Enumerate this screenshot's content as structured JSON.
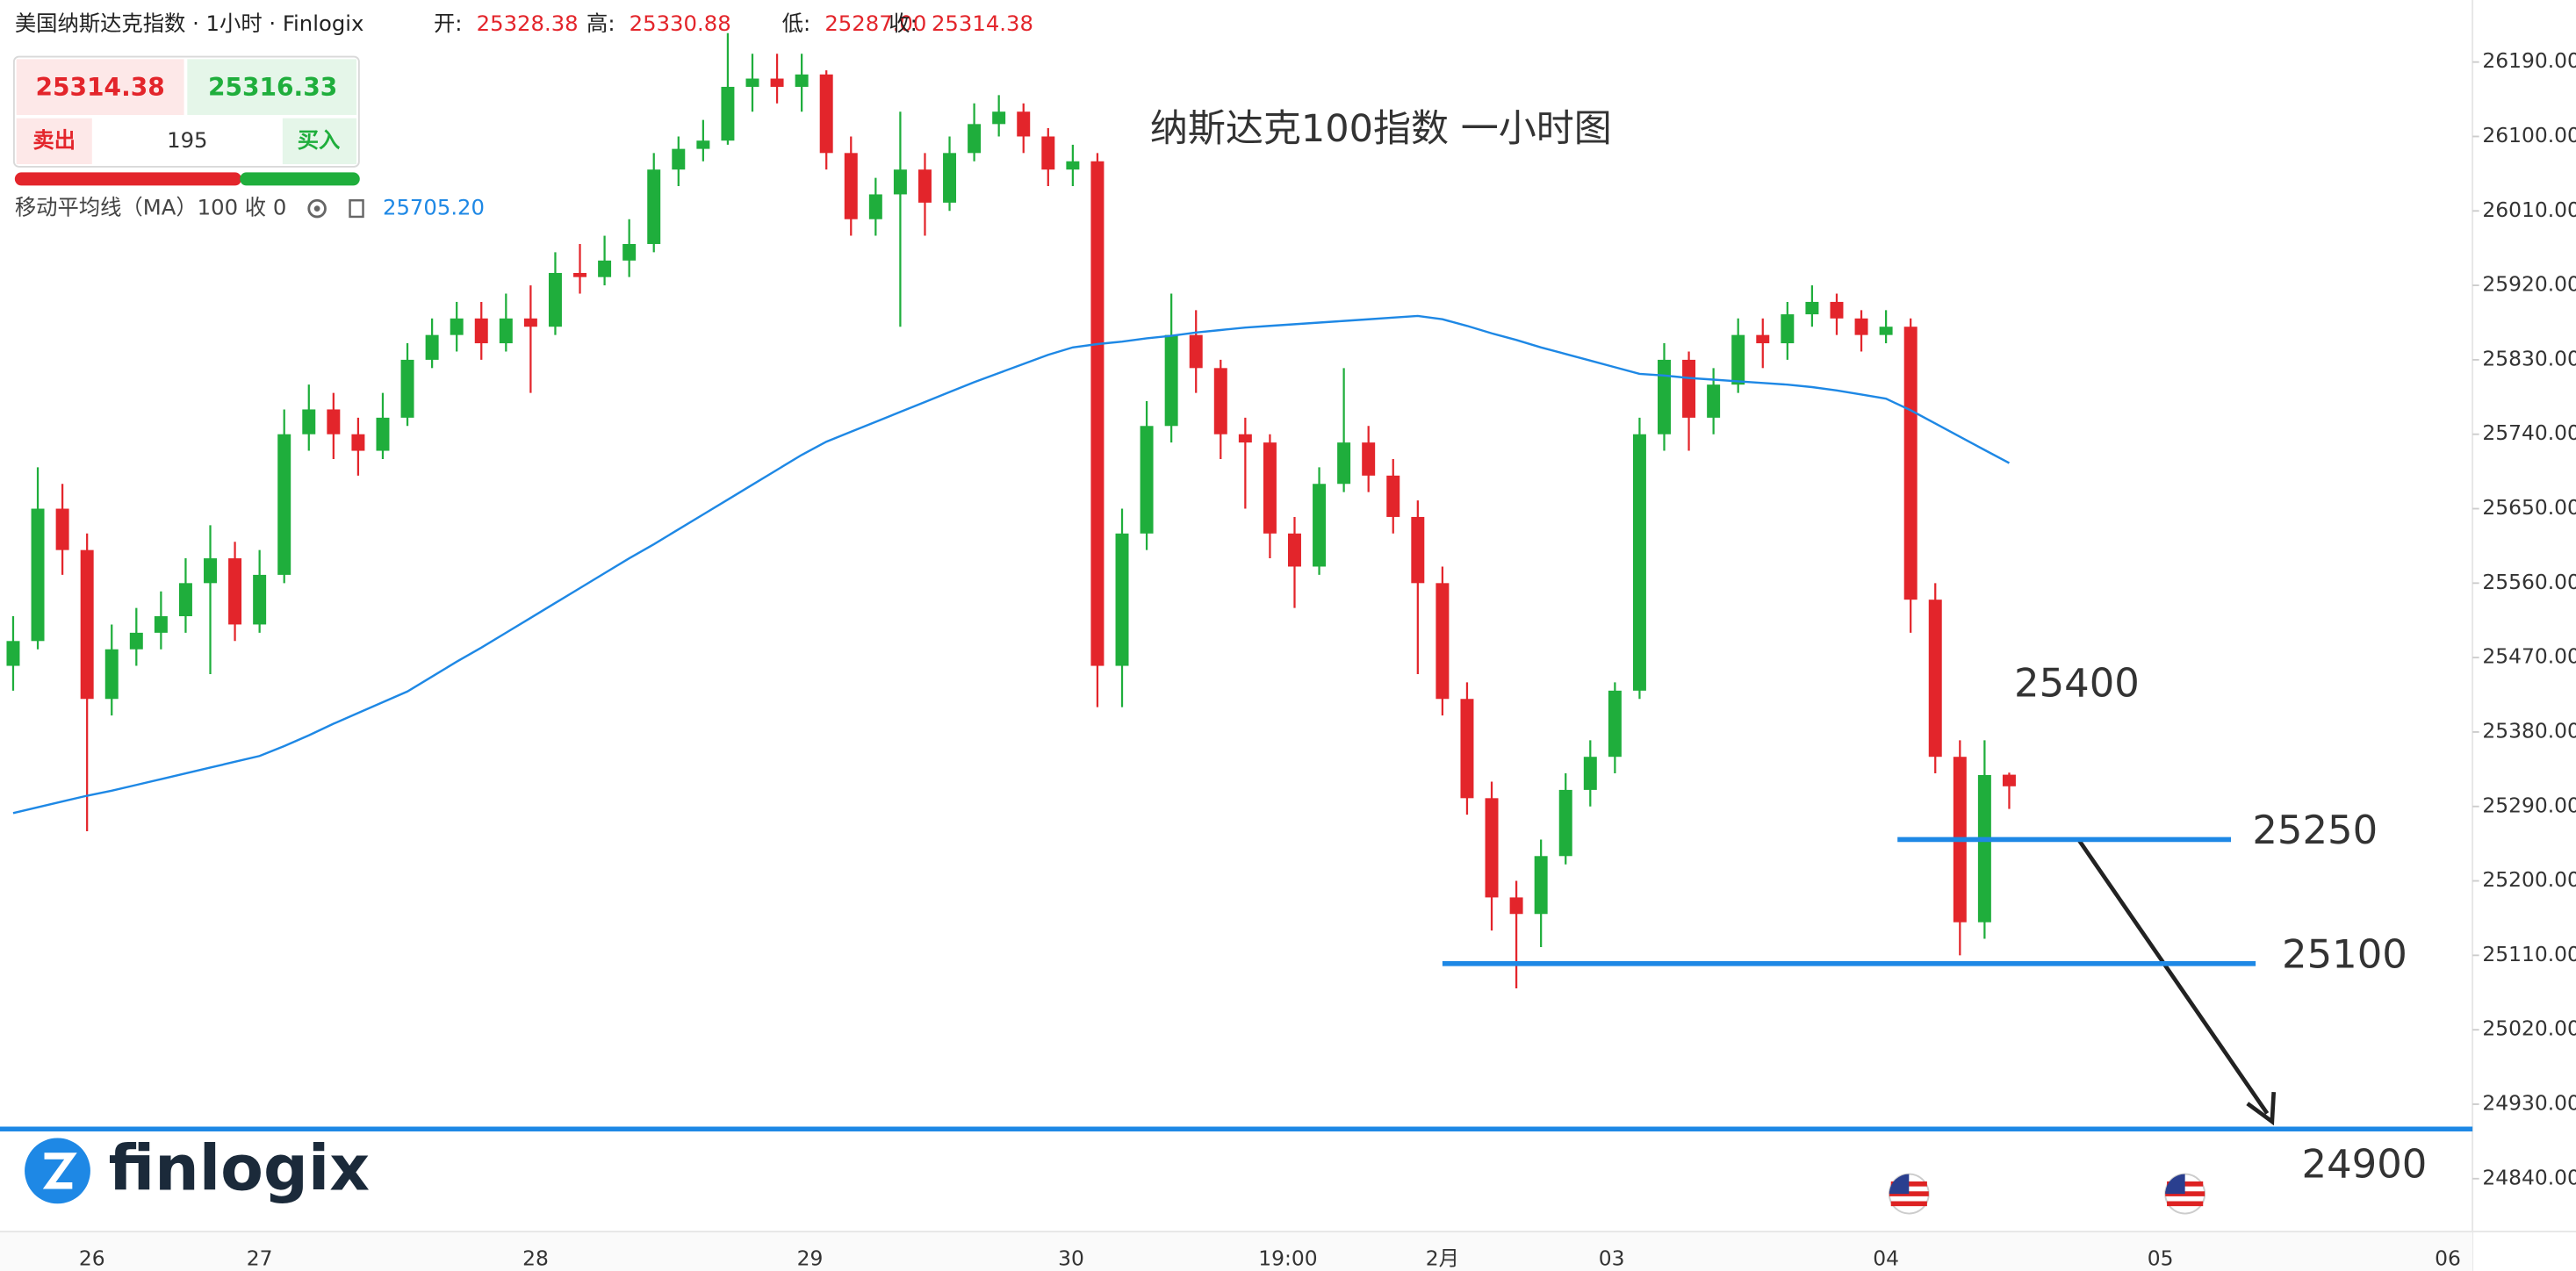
{
  "header": {
    "title": "美国纳斯达克指数 · 1小时 · Finlogix",
    "open_label": "开:",
    "open": "25328.38",
    "high_label": "高:",
    "high": "25330.88",
    "low_label": "低:",
    "low": "25287.00",
    "close_label": "收:",
    "close": "25314.38"
  },
  "quote": {
    "sell_price": "25314.38",
    "buy_price": "25316.33",
    "sell": "卖出",
    "spread": "195",
    "buy": "买入"
  },
  "indicator": {
    "label": "移动平均线（MA）100 收 0",
    "value": "25705.20"
  },
  "logo": "finlogix",
  "chart_data": {
    "type": "candlestick",
    "title": "纳斯达克100指数 一小时图",
    "up_color": "#1fae3c",
    "down_color": "#e3252b",
    "ohlc": [
      [
        25460,
        25520,
        25430,
        25490
      ],
      [
        25490,
        25700,
        25480,
        25650
      ],
      [
        25650,
        25680,
        25570,
        25600
      ],
      [
        25600,
        25620,
        25260,
        25420
      ],
      [
        25420,
        25510,
        25400,
        25480
      ],
      [
        25480,
        25530,
        25460,
        25500
      ],
      [
        25500,
        25550,
        25480,
        25520
      ],
      [
        25520,
        25590,
        25500,
        25560
      ],
      [
        25560,
        25630,
        25450,
        25590
      ],
      [
        25590,
        25610,
        25490,
        25510
      ],
      [
        25510,
        25600,
        25500,
        25570
      ],
      [
        25570,
        25770,
        25560,
        25740
      ],
      [
        25740,
        25800,
        25720,
        25770
      ],
      [
        25770,
        25790,
        25710,
        25740
      ],
      [
        25740,
        25760,
        25690,
        25720
      ],
      [
        25720,
        25790,
        25710,
        25760
      ],
      [
        25760,
        25850,
        25750,
        25830
      ],
      [
        25830,
        25880,
        25820,
        25860
      ],
      [
        25860,
        25900,
        25840,
        25880
      ],
      [
        25880,
        25900,
        25830,
        25850
      ],
      [
        25850,
        25910,
        25840,
        25880
      ],
      [
        25880,
        25920,
        25790,
        25870
      ],
      [
        25870,
        25960,
        25860,
        25935
      ],
      [
        25935,
        25970,
        25910,
        25930
      ],
      [
        25930,
        25980,
        25920,
        25950
      ],
      [
        25950,
        26000,
        25930,
        25970
      ],
      [
        25970,
        26080,
        25960,
        26060
      ],
      [
        26060,
        26100,
        26040,
        26085
      ],
      [
        26085,
        26120,
        26070,
        26095
      ],
      [
        26095,
        26225,
        26090,
        26160
      ],
      [
        26160,
        26200,
        26130,
        26170
      ],
      [
        26170,
        26200,
        26140,
        26160
      ],
      [
        26160,
        26200,
        26130,
        26175
      ],
      [
        26175,
        26180,
        26060,
        26080
      ],
      [
        26080,
        26100,
        25980,
        26000
      ],
      [
        26000,
        26050,
        25980,
        26030
      ],
      [
        26030,
        26130,
        25870,
        26060
      ],
      [
        26060,
        26080,
        25980,
        26020
      ],
      [
        26020,
        26100,
        26010,
        26080
      ],
      [
        26080,
        26140,
        26070,
        26115
      ],
      [
        26115,
        26150,
        26100,
        26130
      ],
      [
        26130,
        26140,
        26080,
        26100
      ],
      [
        26100,
        26110,
        26040,
        26060
      ],
      [
        26060,
        26090,
        26040,
        26070
      ],
      [
        26070,
        26080,
        25410,
        25460
      ],
      [
        25460,
        25650,
        25410,
        25620
      ],
      [
        25620,
        25780,
        25600,
        25750
      ],
      [
        25750,
        25910,
        25730,
        25860
      ],
      [
        25860,
        25890,
        25790,
        25820
      ],
      [
        25820,
        25830,
        25710,
        25740
      ],
      [
        25740,
        25760,
        25650,
        25730
      ],
      [
        25730,
        25740,
        25590,
        25620
      ],
      [
        25620,
        25640,
        25530,
        25580
      ],
      [
        25580,
        25700,
        25570,
        25680
      ],
      [
        25680,
        25820,
        25670,
        25730
      ],
      [
        25730,
        25750,
        25670,
        25690
      ],
      [
        25690,
        25710,
        25620,
        25640
      ],
      [
        25640,
        25660,
        25450,
        25560
      ],
      [
        25560,
        25580,
        25400,
        25420
      ],
      [
        25420,
        25440,
        25280,
        25300
      ],
      [
        25300,
        25320,
        25140,
        25180
      ],
      [
        25180,
        25200,
        25070,
        25160
      ],
      [
        25160,
        25250,
        25120,
        25230
      ],
      [
        25230,
        25330,
        25220,
        25310
      ],
      [
        25310,
        25370,
        25290,
        25350
      ],
      [
        25350,
        25440,
        25330,
        25430
      ],
      [
        25430,
        25760,
        25420,
        25740
      ],
      [
        25740,
        25850,
        25720,
        25830
      ],
      [
        25830,
        25840,
        25720,
        25760
      ],
      [
        25760,
        25820,
        25740,
        25800
      ],
      [
        25800,
        25880,
        25790,
        25860
      ],
      [
        25860,
        25880,
        25820,
        25850
      ],
      [
        25850,
        25900,
        25830,
        25885
      ],
      [
        25885,
        25920,
        25870,
        25900
      ],
      [
        25900,
        25910,
        25860,
        25880
      ],
      [
        25880,
        25890,
        25840,
        25860
      ],
      [
        25860,
        25890,
        25850,
        25870
      ],
      [
        25870,
        25880,
        25500,
        25540
      ],
      [
        25540,
        25560,
        25330,
        25350
      ],
      [
        25350,
        25370,
        25110,
        25150
      ],
      [
        25150,
        25370,
        25130,
        25328
      ],
      [
        25328.38,
        25330.88,
        25287,
        25314.38
      ]
    ],
    "ma": {
      "color": "#1e88e5",
      "values": [
        25282,
        25289,
        25296,
        25303,
        25309,
        25316,
        25323,
        25330,
        25337,
        25344,
        25351,
        25363,
        25376,
        25390,
        25403,
        25416,
        25429,
        25447,
        25465,
        25482,
        25500,
        25518,
        25536,
        25554,
        25572,
        25590,
        25607,
        25625,
        25643,
        25661,
        25679,
        25697,
        25715,
        25731,
        25743,
        25755,
        25767,
        25779,
        25791,
        25803,
        25814,
        25825,
        25836,
        25845,
        25849,
        25852,
        25856,
        25859,
        25863,
        25866,
        25869,
        25871,
        25873,
        25875,
        25877,
        25879,
        25881,
        25883,
        25879,
        25871,
        25862,
        25854,
        25845,
        25837,
        25829,
        25821,
        25813,
        25811,
        25808,
        25806,
        25804,
        25802,
        25800,
        25797,
        25793,
        25788,
        25783,
        25769,
        25753,
        25737,
        25721,
        25705.2
      ]
    },
    "levels": [
      {
        "value": 25400,
        "line": false
      },
      {
        "value": 25250,
        "line": true
      },
      {
        "value": 25100,
        "line": true
      },
      {
        "value": 24900,
        "line": true
      }
    ],
    "level_color": "#1e88e5",
    "xlabels": [
      "26",
      "27",
      "28",
      "29",
      "30",
      "19:00",
      "2月",
      "03",
      "04",
      "05",
      "06"
    ],
    "ylim": [
      24776,
      26265
    ],
    "yticks": [
      {
        "value": 26190,
        "label": "26190.00"
      },
      {
        "value": 26100,
        "label": "26100.00"
      },
      {
        "value": 26010,
        "label": "26010.00"
      },
      {
        "value": 25920,
        "label": "25920.00"
      },
      {
        "value": 25830,
        "label": "25830.00"
      },
      {
        "value": 25740,
        "label": "25740.00"
      },
      {
        "value": 25650,
        "label": "25650.00"
      },
      {
        "value": 25560,
        "label": "25560.00"
      },
      {
        "value": 25470,
        "label": "25470.00"
      },
      {
        "value": 25380,
        "label": "25380.00"
      },
      {
        "value": 25290,
        "label": "25290.00"
      },
      {
        "value": 25200,
        "label": "25200.00"
      },
      {
        "value": 25110,
        "label": "25110.00"
      },
      {
        "value": 25020,
        "label": "25020.00"
      },
      {
        "value": 24930,
        "label": "24930.00"
      },
      {
        "value": 24840,
        "label": "24840.00"
      }
    ]
  }
}
